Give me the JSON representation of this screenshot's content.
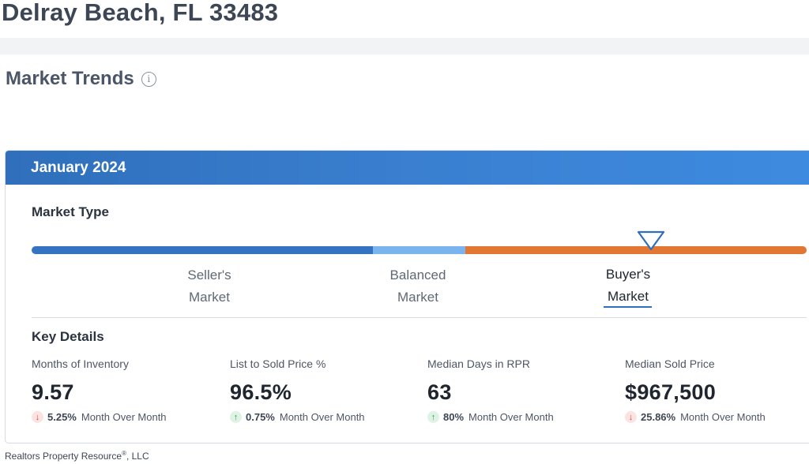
{
  "header": {
    "location": "Delray Beach, FL 33483"
  },
  "section": {
    "title": "Market Trends",
    "info_icon": "info-icon"
  },
  "card": {
    "month": "January 2024",
    "market_type_label": "Market Type",
    "scale": {
      "seller": {
        "line1": "Seller's",
        "line2": "Market",
        "color": "#3472c2"
      },
      "balanced": {
        "line1": "Balanced",
        "line2": "Market",
        "color": "#79b4ef"
      },
      "buyer": {
        "line1": "Buyer's",
        "line2": "Market",
        "color": "#e27733"
      },
      "selected": "buyer",
      "indicator_icon": "triangle-down-icon"
    },
    "key_details_title": "Key Details",
    "metrics": [
      {
        "label": "Months of Inventory",
        "value": "9.57",
        "direction": "down",
        "change": "5.25%",
        "period": "Month Over Month"
      },
      {
        "label": "List to Sold Price %",
        "value": "96.5%",
        "direction": "up",
        "change": "0.75%",
        "period": "Month Over Month"
      },
      {
        "label": "Median Days in RPR",
        "value": "63",
        "direction": "up",
        "change": "80%",
        "period": "Month Over Month"
      },
      {
        "label": "Median Sold Price",
        "value": "$967,500",
        "direction": "down",
        "change": "25.86%",
        "period": "Month Over Month"
      }
    ]
  },
  "footer": {
    "company": "Realtors Property Resource",
    "registered": "®",
    "suffix": ", LLC"
  },
  "colors": {
    "header_blue": "#3472c2",
    "down_red": "#d9473c",
    "up_green": "#2f9a55"
  }
}
